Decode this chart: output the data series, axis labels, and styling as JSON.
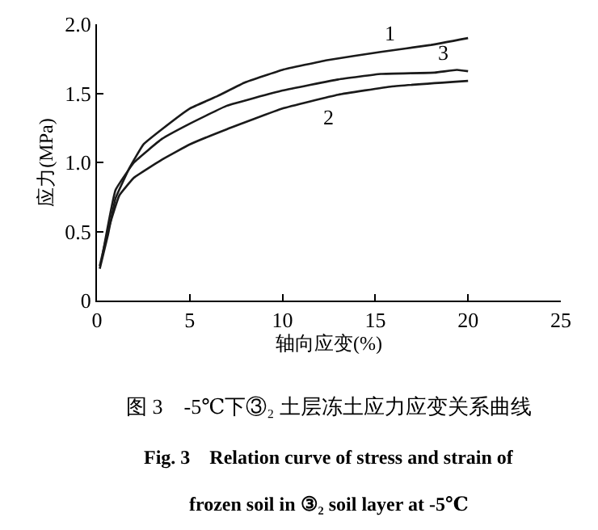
{
  "chart_data": {
    "type": "line",
    "xlabel": "轴向应变(%)",
    "ylabel": "应力(MPa)",
    "xlim": [
      0,
      25
    ],
    "xticks": [
      0,
      5,
      10,
      15,
      20,
      25
    ],
    "ylim": [
      0,
      2.0
    ],
    "yticks": [
      {
        "value": 0,
        "label": "0"
      },
      0.5,
      {
        "value": 1.0,
        "label": "1.0"
      },
      1.5,
      {
        "value": 2.0,
        "label": "2.0"
      }
    ],
    "legend": false,
    "marker": "none",
    "line_style": "solid",
    "series": [
      {
        "name": "1",
        "color": "#1a1a1a",
        "x": [
          0.15,
          0.6,
          1.0,
          1.75,
          2.5,
          3.5,
          5,
          6.5,
          8,
          10,
          12.4,
          15.3,
          18,
          20
        ],
        "values": [
          0.23,
          0.48,
          0.74,
          0.96,
          1.13,
          1.24,
          1.39,
          1.48,
          1.58,
          1.67,
          1.74,
          1.8,
          1.85,
          1.9
        ]
      },
      {
        "name": "3",
        "color": "#1a1a1a",
        "x": [
          0.3,
          1.0,
          2,
          3.5,
          5,
          7,
          10,
          13,
          15.3,
          18.2,
          19.4,
          20
        ],
        "values": [
          0.33,
          0.8,
          1.0,
          1.17,
          1.28,
          1.41,
          1.52,
          1.6,
          1.64,
          1.65,
          1.67,
          1.66
        ]
      },
      {
        "name": "2",
        "color": "#1a1a1a",
        "x": [
          0.15,
          0.6,
          1.2,
          2,
          3.5,
          5,
          7,
          10,
          13,
          15.9,
          20
        ],
        "values": [
          0.25,
          0.51,
          0.76,
          0.89,
          1.02,
          1.13,
          1.24,
          1.39,
          1.49,
          1.55,
          1.59
        ]
      }
    ],
    "annotations": [
      "图 3　-5℃下③₂ 土层冻土应力应变关系曲线",
      "Fig. 3　Relation curve of stress and strain of",
      "frozen soil in ③₂ soil layer at -5℃"
    ]
  }
}
